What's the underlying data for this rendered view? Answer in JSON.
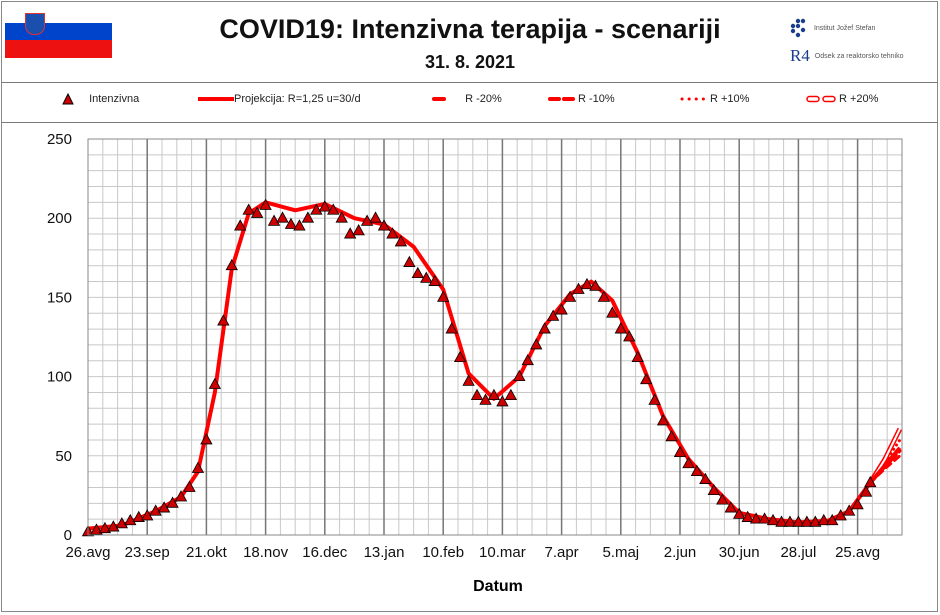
{
  "header": {
    "title": "COVID19: Intenzivna terapija - scenariji",
    "date": "31. 8. 2021",
    "logo_ijs": "Institut Jožef Stefan",
    "logo_r4_mark": "R4",
    "logo_r4": "Odsek za reaktorsko tehniko",
    "flag": "slovenia-flag"
  },
  "colors": {
    "series": "#ff0000",
    "marker_fill": "#cc0000",
    "marker_edge": "#000000",
    "grid": "#c8c8c8",
    "grid_major": "#777777"
  },
  "chart_data": {
    "type": "line",
    "title": "COVID19: Intenzivna terapija - scenariji",
    "xlabel": "Datum",
    "ylabel": "",
    "xlim": [
      "2020-08-26",
      "2021-09-15"
    ],
    "ylim": [
      0,
      250
    ],
    "yticks": [
      0,
      50,
      100,
      150,
      200,
      250
    ],
    "xtick_labels": [
      "26.avg",
      "23.sep",
      "21.okt",
      "18.nov",
      "16.dec",
      "13.jan",
      "10.feb",
      "10.mar",
      "7.apr",
      "5.maj",
      "2.jun",
      "30.jun",
      "28.jul",
      "25.avg"
    ],
    "xtick_dates": [
      "2020-08-26",
      "2020-09-23",
      "2020-10-21",
      "2020-11-18",
      "2020-12-16",
      "2021-01-13",
      "2021-02-10",
      "2021-03-10",
      "2021-04-07",
      "2021-05-05",
      "2021-06-02",
      "2021-06-30",
      "2021-07-28",
      "2021-08-25"
    ],
    "grid": true,
    "legend_placement": "top",
    "legend": [
      "Intenzivna",
      "Projekcija: R=1,25 u=30/d",
      "R -20%",
      "R -10%",
      "R +10%",
      "R +20%"
    ],
    "observed": {
      "name": "Intenzivna",
      "marker": "triangle",
      "x": [
        "2020-08-26",
        "2020-08-30",
        "2020-09-03",
        "2020-09-07",
        "2020-09-11",
        "2020-09-15",
        "2020-09-19",
        "2020-09-23",
        "2020-09-27",
        "2020-10-01",
        "2020-10-05",
        "2020-10-09",
        "2020-10-13",
        "2020-10-17",
        "2020-10-21",
        "2020-10-25",
        "2020-10-29",
        "2020-11-02",
        "2020-11-06",
        "2020-11-10",
        "2020-11-14",
        "2020-11-18",
        "2020-11-22",
        "2020-11-26",
        "2020-11-30",
        "2020-12-04",
        "2020-12-08",
        "2020-12-12",
        "2020-12-16",
        "2020-12-20",
        "2020-12-24",
        "2020-12-28",
        "2021-01-01",
        "2021-01-05",
        "2021-01-09",
        "2021-01-13",
        "2021-01-17",
        "2021-01-21",
        "2021-01-25",
        "2021-01-29",
        "2021-02-02",
        "2021-02-06",
        "2021-02-10",
        "2021-02-14",
        "2021-02-18",
        "2021-02-22",
        "2021-02-26",
        "2021-03-02",
        "2021-03-06",
        "2021-03-10",
        "2021-03-14",
        "2021-03-18",
        "2021-03-22",
        "2021-03-26",
        "2021-03-30",
        "2021-04-03",
        "2021-04-07",
        "2021-04-11",
        "2021-04-15",
        "2021-04-19",
        "2021-04-23",
        "2021-04-27",
        "2021-05-01",
        "2021-05-05",
        "2021-05-09",
        "2021-05-13",
        "2021-05-17",
        "2021-05-21",
        "2021-05-25",
        "2021-05-29",
        "2021-06-02",
        "2021-06-06",
        "2021-06-10",
        "2021-06-14",
        "2021-06-18",
        "2021-06-22",
        "2021-06-26",
        "2021-06-30",
        "2021-07-04",
        "2021-07-08",
        "2021-07-12",
        "2021-07-16",
        "2021-07-20",
        "2021-07-24",
        "2021-07-28",
        "2021-08-01",
        "2021-08-05",
        "2021-08-09",
        "2021-08-13",
        "2021-08-17",
        "2021-08-21",
        "2021-08-25",
        "2021-08-29",
        "2021-08-31"
      ],
      "y": [
        2,
        3,
        4,
        5,
        7,
        9,
        11,
        12,
        15,
        17,
        20,
        24,
        30,
        42,
        60,
        95,
        135,
        170,
        195,
        205,
        203,
        208,
        198,
        200,
        196,
        195,
        200,
        205,
        207,
        205,
        200,
        190,
        192,
        198,
        200,
        195,
        190,
        185,
        172,
        165,
        162,
        160,
        150,
        130,
        112,
        97,
        88,
        85,
        88,
        84,
        88,
        100,
        110,
        120,
        130,
        138,
        142,
        150,
        155,
        158,
        157,
        150,
        140,
        130,
        125,
        112,
        98,
        85,
        72,
        62,
        52,
        45,
        40,
        35,
        28,
        22,
        17,
        13,
        11,
        10,
        10,
        9,
        8,
        8,
        8,
        8,
        8,
        9,
        9,
        12,
        15,
        19,
        27,
        33
      ]
    },
    "projection": {
      "name": "Projekcija: R=1,25 u=30/d",
      "x": [
        "2020-08-26",
        "2020-09-11",
        "2020-09-27",
        "2020-10-09",
        "2020-10-17",
        "2020-10-25",
        "2020-11-02",
        "2020-11-10",
        "2020-11-18",
        "2020-12-02",
        "2020-12-16",
        "2020-12-30",
        "2021-01-13",
        "2021-01-27",
        "2021-02-10",
        "2021-02-22",
        "2021-03-06",
        "2021-03-18",
        "2021-03-30",
        "2021-04-11",
        "2021-04-21",
        "2021-05-01",
        "2021-05-13",
        "2021-05-25",
        "2021-06-06",
        "2021-06-18",
        "2021-06-30",
        "2021-07-14",
        "2021-07-28",
        "2021-08-11",
        "2021-08-21",
        "2021-08-31",
        "2021-09-07",
        "2021-09-14"
      ],
      "y": [
        4,
        6,
        15,
        24,
        40,
        90,
        168,
        203,
        210,
        205,
        209,
        200,
        196,
        182,
        155,
        102,
        86,
        100,
        132,
        152,
        160,
        148,
        115,
        75,
        48,
        30,
        14,
        10,
        8,
        9,
        15,
        33,
        44,
        55
      ]
    },
    "scenarios": [
      {
        "name": "R -20%",
        "style": "dash",
        "x": [
          "2021-08-31",
          "2021-09-07",
          "2021-09-14"
        ],
        "y": [
          33,
          42,
          50
        ]
      },
      {
        "name": "R -10%",
        "style": "longdash",
        "x": [
          "2021-08-31",
          "2021-09-07",
          "2021-09-14"
        ],
        "y": [
          33,
          43,
          53
        ]
      },
      {
        "name": "R +10%",
        "style": "dot",
        "x": [
          "2021-08-31",
          "2021-09-07",
          "2021-09-14"
        ],
        "y": [
          33,
          46,
          60
        ]
      },
      {
        "name": "R +20%",
        "style": "hollow",
        "x": [
          "2021-08-31",
          "2021-09-07",
          "2021-09-14"
        ],
        "y": [
          33,
          48,
          67
        ]
      }
    ]
  }
}
